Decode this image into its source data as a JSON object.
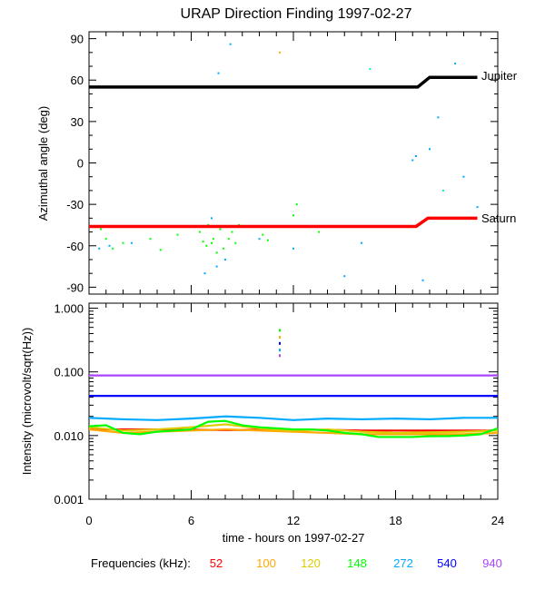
{
  "chart_data": [
    {
      "type": "line",
      "panel": "direction",
      "title": "URAP Direction Finding  1997-02-27",
      "ylabel": "Azimuthal angle (deg)",
      "xlim": [
        0,
        24
      ],
      "ylim": [
        -95,
        95
      ],
      "yticks": [
        "90",
        "60",
        "30",
        "0",
        "-30",
        "-60",
        "-90"
      ],
      "ytick_values": [
        90,
        60,
        30,
        0,
        -30,
        -60,
        -90
      ],
      "series": [
        {
          "name": "Jupiter",
          "color": "#000000",
          "x": [
            0,
            19.3,
            20.0,
            22.8
          ],
          "y": [
            55,
            55,
            62,
            62
          ]
        },
        {
          "name": "Saturn",
          "color": "#ff0000",
          "x": [
            0,
            19.2,
            19.9,
            22.8
          ],
          "y": [
            -46,
            -46,
            -40,
            -40
          ]
        }
      ],
      "scatter_points": [
        {
          "color": "#00ff00",
          "x": [
            0.7,
            1.0,
            1.4,
            2.0,
            3.6,
            4.2,
            5.2,
            6.5,
            6.7,
            6.9,
            7.0,
            7.2,
            7.3,
            7.5,
            7.7,
            7.9,
            8.2,
            8.4,
            8.6,
            8.8,
            10.2,
            10.5,
            12.0,
            12.2,
            13.5
          ],
          "y": [
            -48,
            -55,
            -62,
            -58,
            -55,
            -63,
            -52,
            -50,
            -57,
            -60,
            -45,
            -58,
            -55,
            -65,
            -48,
            -62,
            -55,
            -50,
            -58,
            -45,
            -52,
            -56,
            -38,
            -30,
            -50
          ]
        },
        {
          "color": "#00aaff",
          "x": [
            0.6,
            1.2,
            2.5,
            6.8,
            7.2,
            7.5,
            7.6,
            8.0,
            8.3,
            10.0,
            12.0,
            15.0,
            16.0,
            19.0,
            19.2,
            19.6,
            20.0,
            20.5,
            21.5,
            22.0,
            22.8
          ],
          "y": [
            -62,
            -60,
            -58,
            -80,
            -40,
            -75,
            65,
            -70,
            86,
            -55,
            -62,
            -82,
            -58,
            2,
            5,
            -85,
            10,
            33,
            72,
            -10,
            -32
          ]
        },
        {
          "color": "#ffaa00",
          "x": [
            11.2
          ],
          "y": [
            80
          ]
        },
        {
          "color": "#00ffaa",
          "x": [
            16.5,
            20.8
          ],
          "y": [
            68,
            -20
          ]
        }
      ]
    },
    {
      "type": "line",
      "panel": "intensity",
      "ylabel": "Intensity (microvolt/sqrt(Hz))",
      "xlabel": "time - hours on 1997-02-27",
      "xlim": [
        0,
        24
      ],
      "xticks": [
        "0",
        "6",
        "12",
        "18",
        "24"
      ],
      "xtick_values": [
        0,
        6,
        12,
        18,
        24
      ],
      "yscale": "log",
      "ylim": [
        0.001,
        1.2
      ],
      "yticks": [
        "1.000",
        "0.100",
        "0.010",
        "0.001"
      ],
      "ytick_values": [
        1.0,
        0.1,
        0.01,
        0.001
      ],
      "legend_prefix": "Frequencies (kHz):",
      "series": [
        {
          "name": "52",
          "color": "#ff0000",
          "x": [
            0,
            4,
            8,
            12,
            16,
            20,
            24
          ],
          "y": [
            0.0125,
            0.0125,
            0.0122,
            0.0125,
            0.012,
            0.012,
            0.012
          ]
        },
        {
          "name": "100",
          "color": "#ffaa00",
          "x": [
            0,
            2,
            4,
            6,
            8,
            10,
            12,
            14,
            16,
            18,
            20,
            22,
            24
          ],
          "y": [
            0.0125,
            0.011,
            0.0115,
            0.012,
            0.0125,
            0.012,
            0.0115,
            0.011,
            0.0105,
            0.0105,
            0.0105,
            0.0105,
            0.011
          ]
        },
        {
          "name": "120",
          "color": "#ddcc00",
          "x": [
            0,
            2,
            4,
            6,
            8,
            10,
            12,
            14,
            16,
            18,
            20,
            22,
            24
          ],
          "y": [
            0.0135,
            0.012,
            0.0125,
            0.0135,
            0.015,
            0.013,
            0.012,
            0.0125,
            0.0115,
            0.011,
            0.0112,
            0.0115,
            0.012
          ]
        },
        {
          "name": "148",
          "color": "#00ff00",
          "x": [
            0,
            1,
            2,
            3,
            4,
            5,
            6,
            7,
            8,
            9,
            10,
            11,
            12,
            13,
            14,
            15,
            16,
            17,
            18,
            19,
            20,
            21,
            22,
            23,
            24
          ],
          "y": [
            0.014,
            0.0145,
            0.011,
            0.0105,
            0.0115,
            0.012,
            0.0125,
            0.0165,
            0.017,
            0.0145,
            0.0135,
            0.013,
            0.0125,
            0.0125,
            0.012,
            0.011,
            0.0105,
            0.0095,
            0.0095,
            0.0095,
            0.0098,
            0.0098,
            0.01,
            0.0105,
            0.013
          ]
        },
        {
          "name": "272",
          "color": "#00aaff",
          "x": [
            0,
            2,
            4,
            6,
            8,
            10,
            12,
            14,
            16,
            18,
            20,
            22,
            24
          ],
          "y": [
            0.019,
            0.018,
            0.0175,
            0.0185,
            0.02,
            0.019,
            0.0175,
            0.0185,
            0.018,
            0.0185,
            0.018,
            0.019,
            0.019
          ]
        },
        {
          "name": "540",
          "color": "#0000ff",
          "x": [
            0,
            24
          ],
          "y": [
            0.042,
            0.042
          ]
        },
        {
          "name": "940",
          "color": "#aa44ff",
          "x": [
            0,
            24
          ],
          "y": [
            0.088,
            0.088
          ]
        }
      ],
      "spike": {
        "x": 11.2,
        "y_values": [
          0.45,
          0.35,
          0.28,
          0.22,
          0.18
        ],
        "colors": [
          "#00ff00",
          "#ffaa00",
          "#0000ff",
          "#00aaff",
          "#aa44ff"
        ]
      }
    }
  ]
}
